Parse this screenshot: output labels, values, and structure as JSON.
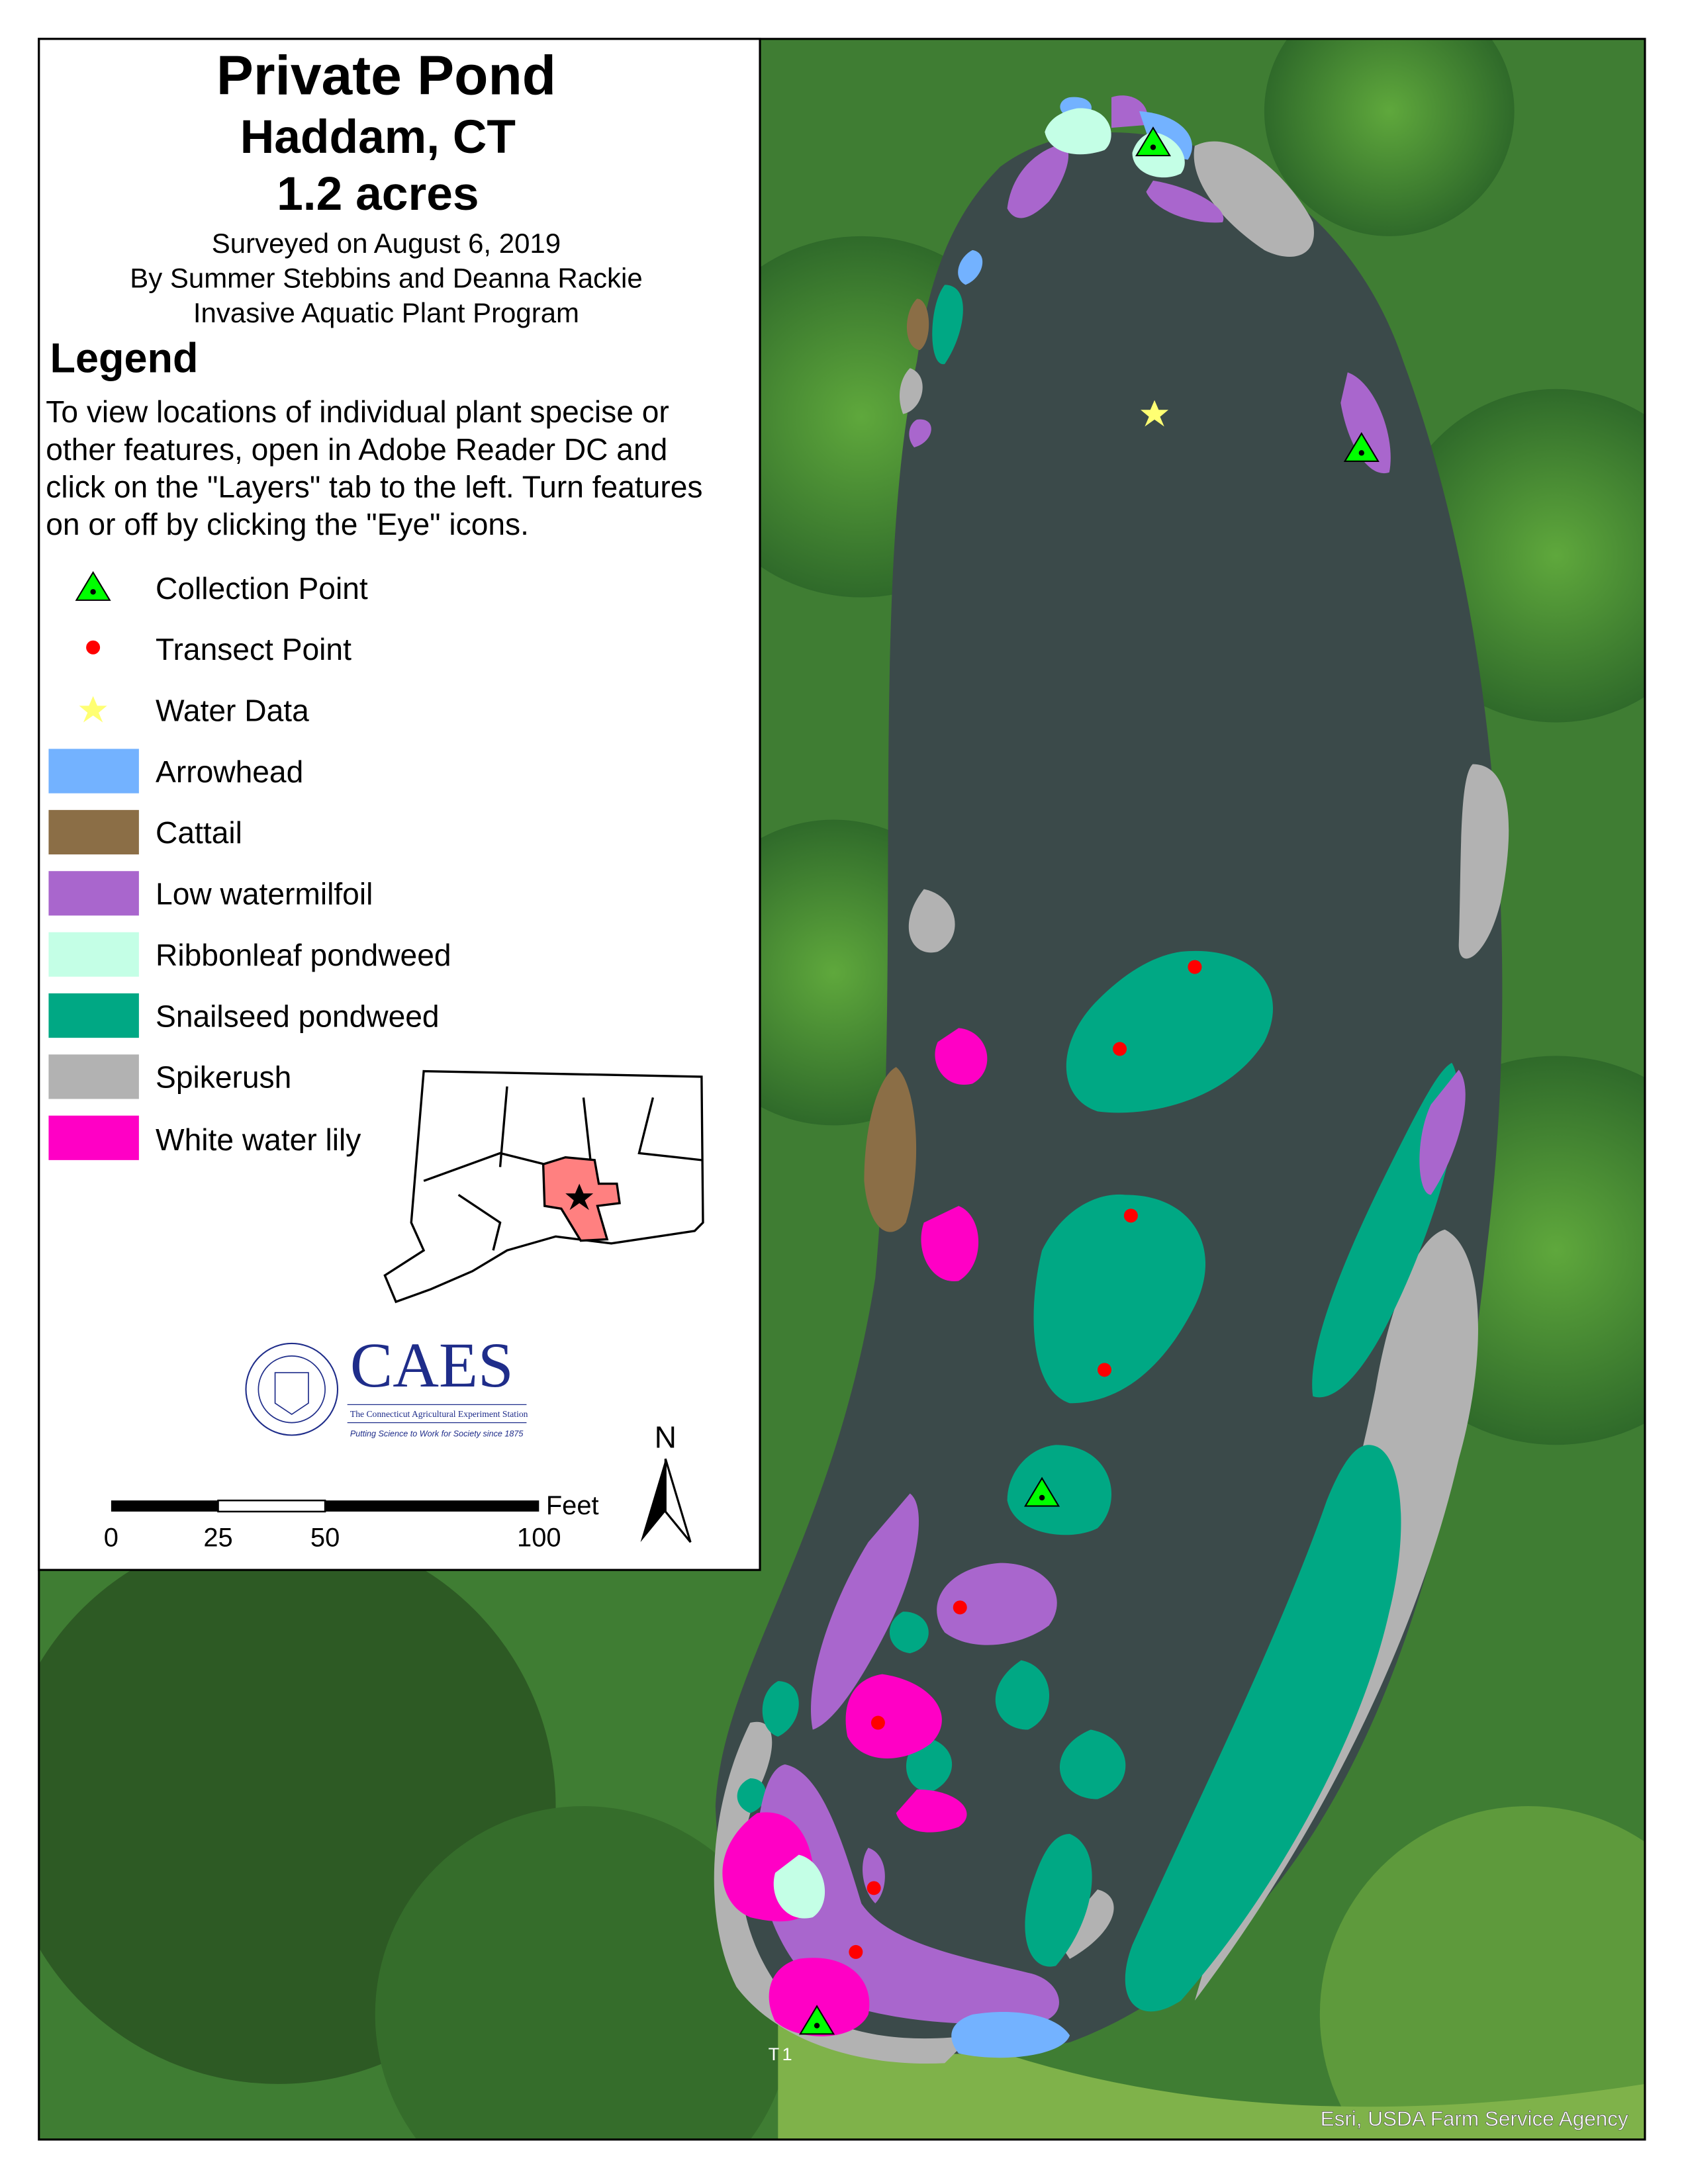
{
  "title": {
    "line1": "Private Pond",
    "line2": "Haddam, CT",
    "line3": "1.2 acres",
    "surveyed": "Surveyed on August 6, 2019",
    "by": "By Summer Stebbins and Deanna Rackie",
    "program": "Invasive Aquatic Plant Program"
  },
  "legend": {
    "heading": "Legend",
    "instructions": [
      "To view locations of individual plant specise or",
      "other features, open in Adobe Reader DC and",
      "click on the \"Layers\" tab to the left. Turn features",
      "on or off by clicking the \"Eye\" icons."
    ],
    "points": [
      {
        "label": "Collection Point",
        "symbol": "triangle-icon",
        "color": "#00ff00"
      },
      {
        "label": "Transect Point",
        "symbol": "dot-icon",
        "color": "#ff0000"
      },
      {
        "label": "Water Data",
        "symbol": "star-icon",
        "color": "#ffff73"
      }
    ],
    "species": [
      {
        "label": "Arrowhead",
        "color": "#73b2ff"
      },
      {
        "label": "Cattail",
        "color": "#8b6e46"
      },
      {
        "label": "Low watermilfoil",
        "color": "#a966cd"
      },
      {
        "label": "Ribbonleaf pondweed",
        "color": "#c4ffe6"
      },
      {
        "label": "Snailseed pondweed",
        "color": "#00a884"
      },
      {
        "label": "Spikerush",
        "color": "#b2b2b2"
      },
      {
        "label": "White water lily",
        "color": "#ff00c5"
      }
    ]
  },
  "locator": {
    "highlight_color": "#ff8080"
  },
  "logo": {
    "name": "CAES",
    "subtitle": "The Connecticut Agricultural Experiment Station",
    "tagline": "Putting Science to Work for Society since 1875",
    "seal_text": "THE CONNECTICUT AGRICULTURAL EXPERIMENT STATION",
    "color": "#1f2d8a"
  },
  "scalebar": {
    "unit": "Feet",
    "ticks": [
      "0",
      "25",
      "50",
      "100"
    ]
  },
  "north_arrow": {
    "label": "N"
  },
  "map": {
    "transect_label": "T1",
    "credit": "Esri, USDA Farm Service Agency"
  }
}
